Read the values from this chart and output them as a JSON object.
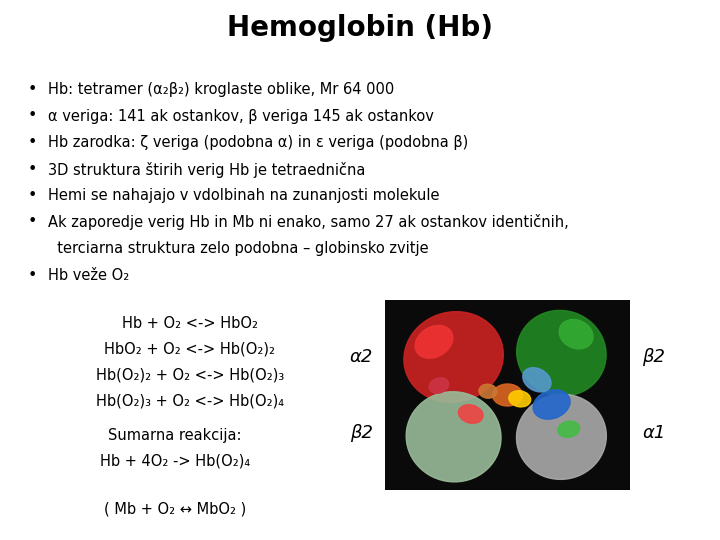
{
  "title": "Hemoglobin (Hb)",
  "background_color": "#ffffff",
  "title_fontsize": 20,
  "title_fontweight": "bold",
  "bullet_points": [
    "Hb: tetramer (α₂β₂) kroglaste oblike, Mr 64 000",
    "α veriga: 141 ak ostankov, β veriga 145 ak ostankov",
    "Hb zarodka: ζ veriga (podobna α) in ε veriga (podobna β)",
    "3D struktura štirih verig Hb je tetraednična",
    "Hemi se nahajajo v vdolbinah na zunanjosti molekule",
    "Ak zaporedje verig Hb in Mb ni enako, samo 27 ak ostankov identičnih,",
    "  terciarna struktura zelo podobna – globinsko zvitje",
    "Hb veže O₂"
  ],
  "bullet_flags": [
    true,
    true,
    true,
    true,
    true,
    true,
    false,
    true
  ],
  "equations": [
    "Hb + O₂ <-> HbO₂",
    "HbO₂ + O₂ <-> Hb(O₂)₂",
    "Hb(O₂)₂ + O₂ <-> Hb(O₂)₃",
    "Hb(O₂)₃ + O₂ <-> Hb(O₂)₄"
  ],
  "sumarna_label": "Sumarna reakcija:",
  "sumarna_eq": "Hb + 4O₂ -> Hb(O₂)₄",
  "mb_eq": "( Mb + O₂ ↔ MbO₂ )",
  "label_alpha2": "α2",
  "label_beta2_left": "β2",
  "label_beta2_right": "β2",
  "label_alpha1": "α1",
  "text_color": "#000000",
  "font_family": "DejaVu Sans",
  "body_fontsize": 10.5,
  "eq_fontsize": 10.5,
  "label_fontsize": 13
}
